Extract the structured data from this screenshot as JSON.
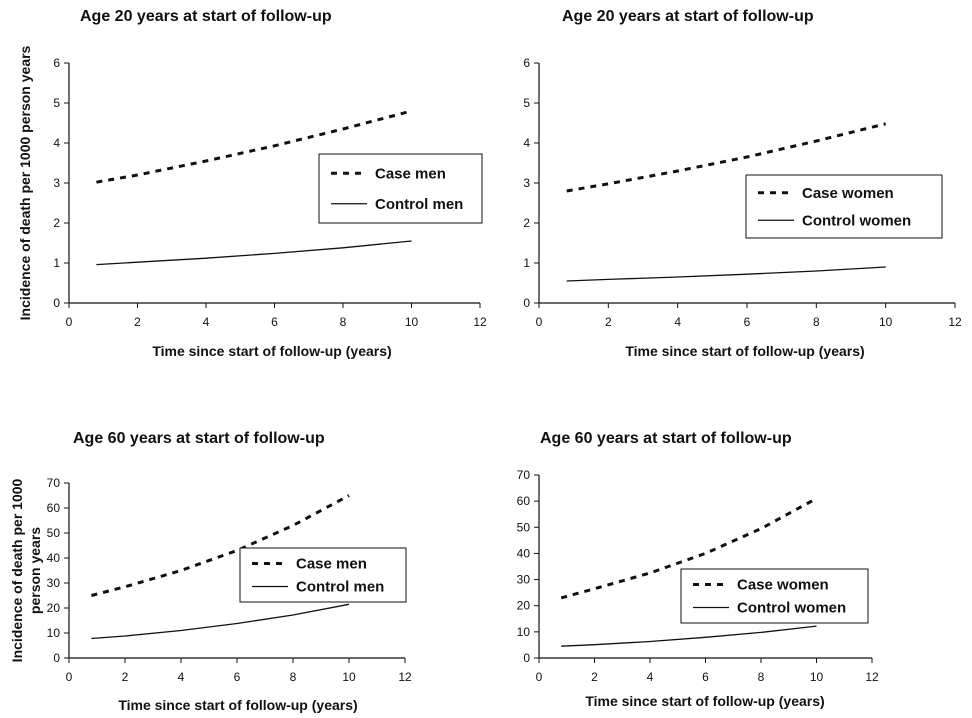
{
  "chart_data": [
    {
      "type": "line",
      "title": "Age 20 years at start of follow-up",
      "xlabel": "Time since start of follow-up (years)",
      "ylabel": "Incidence of death per 1000 person years",
      "xlim": [
        0,
        12
      ],
      "ylim": [
        0,
        6
      ],
      "xticks": [
        0,
        2,
        4,
        6,
        8,
        10,
        12
      ],
      "yticks": [
        0,
        1,
        2,
        3,
        4,
        5,
        6
      ],
      "grid": false,
      "legend_position": "right",
      "series": [
        {
          "name": "Case men",
          "style": "dashed",
          "x": [
            0.8,
            2,
            4,
            6,
            8,
            10
          ],
          "y": [
            3.02,
            3.2,
            3.55,
            3.93,
            4.35,
            4.8
          ]
        },
        {
          "name": "Control men",
          "style": "solid",
          "x": [
            0.8,
            2,
            4,
            6,
            8,
            10
          ],
          "y": [
            0.96,
            1.02,
            1.12,
            1.24,
            1.38,
            1.55
          ]
        }
      ]
    },
    {
      "type": "line",
      "title": "Age 20 years at start of follow-up",
      "xlabel": "Time since start of follow-up (years)",
      "ylabel": "",
      "xlim": [
        0,
        12
      ],
      "ylim": [
        0,
        6
      ],
      "xticks": [
        0,
        2,
        4,
        6,
        8,
        10,
        12
      ],
      "yticks": [
        0,
        1,
        2,
        3,
        4,
        5,
        6
      ],
      "grid": false,
      "legend_position": "right",
      "series": [
        {
          "name": "Case women",
          "style": "dashed",
          "x": [
            0.8,
            2,
            4,
            6,
            8,
            10
          ],
          "y": [
            2.8,
            2.98,
            3.3,
            3.65,
            4.05,
            4.48
          ]
        },
        {
          "name": "Control women",
          "style": "solid",
          "x": [
            0.8,
            2,
            4,
            6,
            8,
            10
          ],
          "y": [
            0.55,
            0.59,
            0.65,
            0.72,
            0.8,
            0.9
          ]
        }
      ]
    },
    {
      "type": "line",
      "title": "Age 60 years at start of follow-up",
      "xlabel": "Time since start of follow-up (years)",
      "ylabel": "Incidence of death per 1000 person years",
      "xlim": [
        0,
        12
      ],
      "ylim": [
        0,
        70
      ],
      "xticks": [
        0,
        2,
        4,
        6,
        8,
        10,
        12
      ],
      "yticks": [
        0,
        10,
        20,
        30,
        40,
        50,
        60,
        70
      ],
      "grid": false,
      "legend_position": "right",
      "series": [
        {
          "name": "Case men",
          "style": "dashed",
          "x": [
            0.8,
            2,
            4,
            6,
            8,
            10
          ],
          "y": [
            25,
            28.5,
            35,
            43,
            53,
            65
          ]
        },
        {
          "name": "Control men",
          "style": "solid",
          "x": [
            0.8,
            2,
            4,
            6,
            8,
            10
          ],
          "y": [
            7.8,
            8.8,
            11,
            13.8,
            17.2,
            21.5
          ]
        }
      ]
    },
    {
      "type": "line",
      "title": "Age 60 years at start of follow-up",
      "xlabel": "Time since start of follow-up (years)",
      "ylabel": "",
      "xlim": [
        0,
        12
      ],
      "ylim": [
        0,
        70
      ],
      "xticks": [
        0,
        2,
        4,
        6,
        8,
        10,
        12
      ],
      "yticks": [
        0,
        10,
        20,
        30,
        40,
        50,
        60,
        70
      ],
      "grid": false,
      "legend_position": "right",
      "series": [
        {
          "name": "Case women",
          "style": "dashed",
          "x": [
            0.8,
            2,
            4,
            6,
            8,
            10
          ],
          "y": [
            23,
            26.5,
            32.5,
            40,
            49.5,
            61
          ]
        },
        {
          "name": "Control women",
          "style": "solid",
          "x": [
            0.8,
            2,
            4,
            6,
            8,
            10
          ],
          "y": [
            4.5,
            5.1,
            6.3,
            7.9,
            9.8,
            12.2
          ]
        }
      ]
    }
  ]
}
